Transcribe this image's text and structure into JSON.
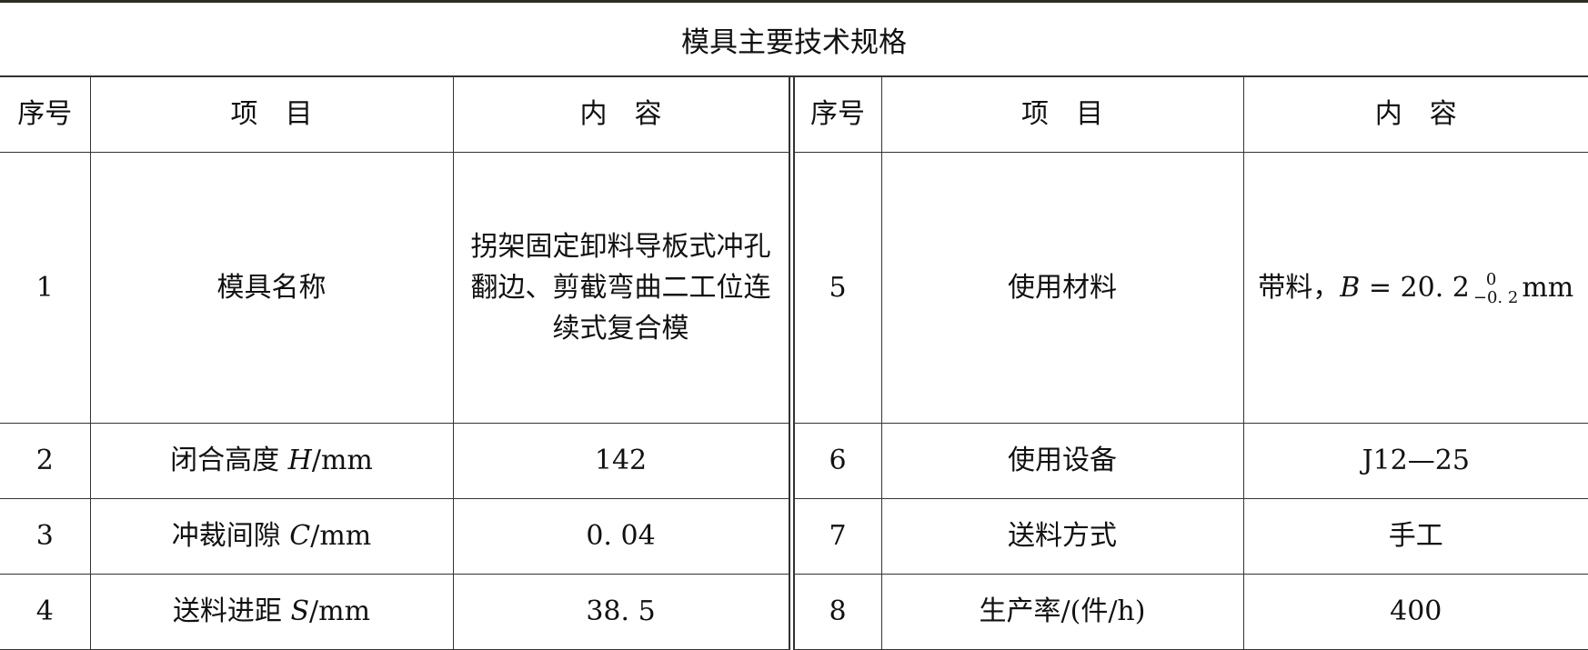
{
  "title": "模具主要技术规格",
  "headers": {
    "no": "序号",
    "item": "项　目",
    "content": "内　容"
  },
  "rows": [
    {
      "left": {
        "no": "1",
        "item": "模具名称",
        "content": "拐架固定卸料导板式冲孔翻边、剪截弯曲二工位连续式复合模"
      },
      "right": {
        "no": "5",
        "item": "使用材料",
        "content_prefix": "带料，",
        "var": "B",
        "eq": " = 20. 2",
        "tol_upper": "0",
        "tol_lower": "−0. 2",
        "unit": "mm"
      }
    },
    {
      "left": {
        "no": "2",
        "item_text": "闭合高度 ",
        "item_var": "H",
        "item_unit": "/mm",
        "content": "142"
      },
      "right": {
        "no": "6",
        "item": "使用设备",
        "content": "J12—25"
      }
    },
    {
      "left": {
        "no": "3",
        "item_text": "冲裁间隙 ",
        "item_var": "C",
        "item_unit": "/mm",
        "content": "0. 04"
      },
      "right": {
        "no": "7",
        "item": "送料方式",
        "content": "手工"
      }
    },
    {
      "left": {
        "no": "4",
        "item_text": "送料进距 ",
        "item_var": "S",
        "item_unit": "/mm",
        "content": "38. 5"
      },
      "right": {
        "no": "8",
        "item": "生产率/(件/h)",
        "content": "400"
      }
    }
  ]
}
